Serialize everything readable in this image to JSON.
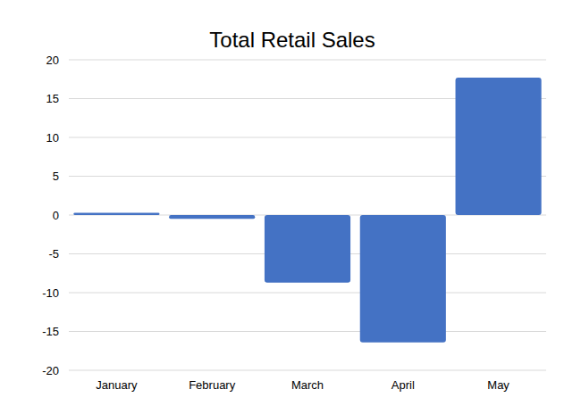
{
  "chart_data": {
    "type": "bar",
    "title": "Total Retail Sales",
    "categories": [
      "January",
      "February",
      "March",
      "April",
      "May"
    ],
    "values": [
      0.3,
      -0.5,
      -8.7,
      -16.4,
      17.7
    ],
    "color": "#4472c4",
    "ylim": [
      -20,
      20
    ],
    "yticks": [
      -20,
      -15,
      -10,
      -5,
      0,
      5,
      10,
      15,
      20
    ],
    "grid": true
  }
}
